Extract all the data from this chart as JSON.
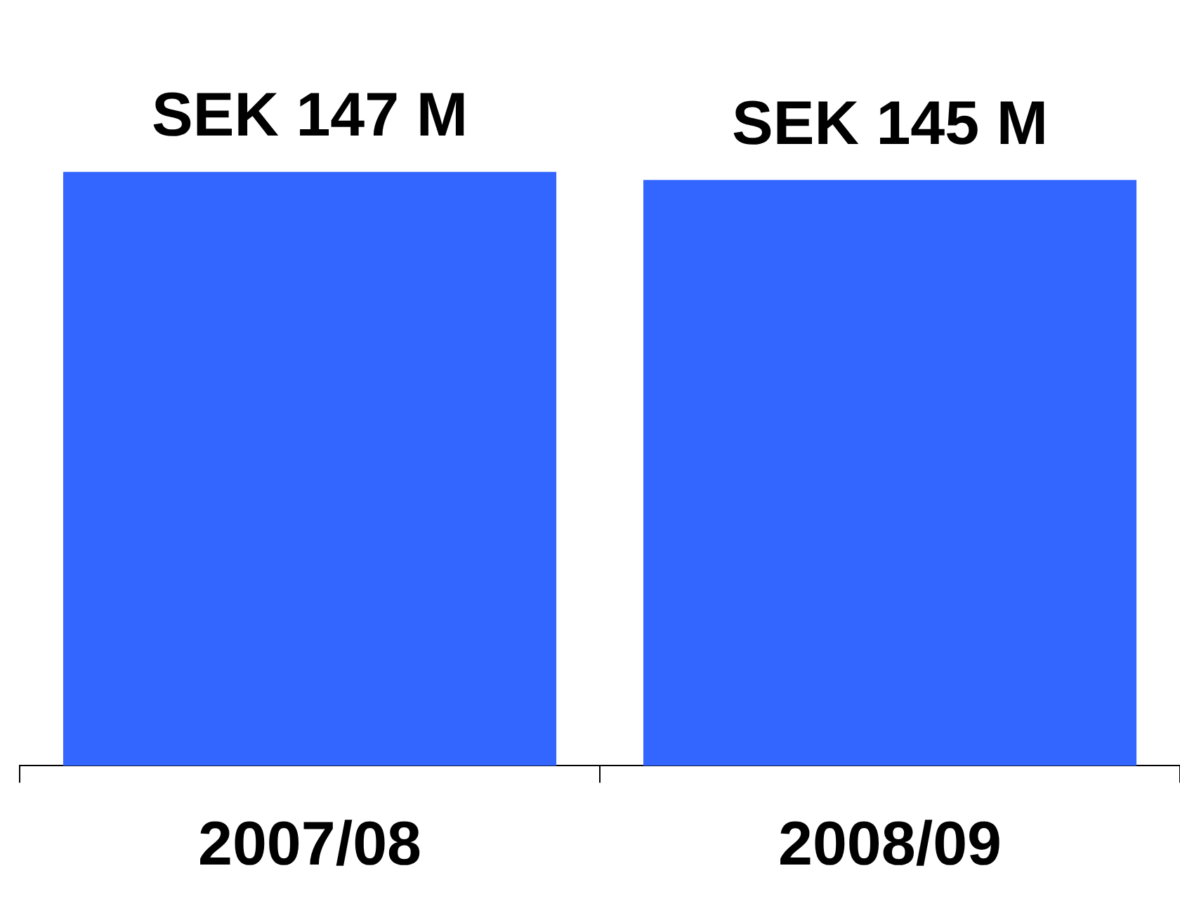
{
  "chart_data": {
    "type": "bar",
    "categories": [
      "2007/08",
      "2008/09"
    ],
    "values": [
      147,
      145
    ],
    "value_labels": [
      "SEK 147 M",
      "SEK 145 M"
    ],
    "color": "#3366ff",
    "grid": false,
    "legend": false
  }
}
